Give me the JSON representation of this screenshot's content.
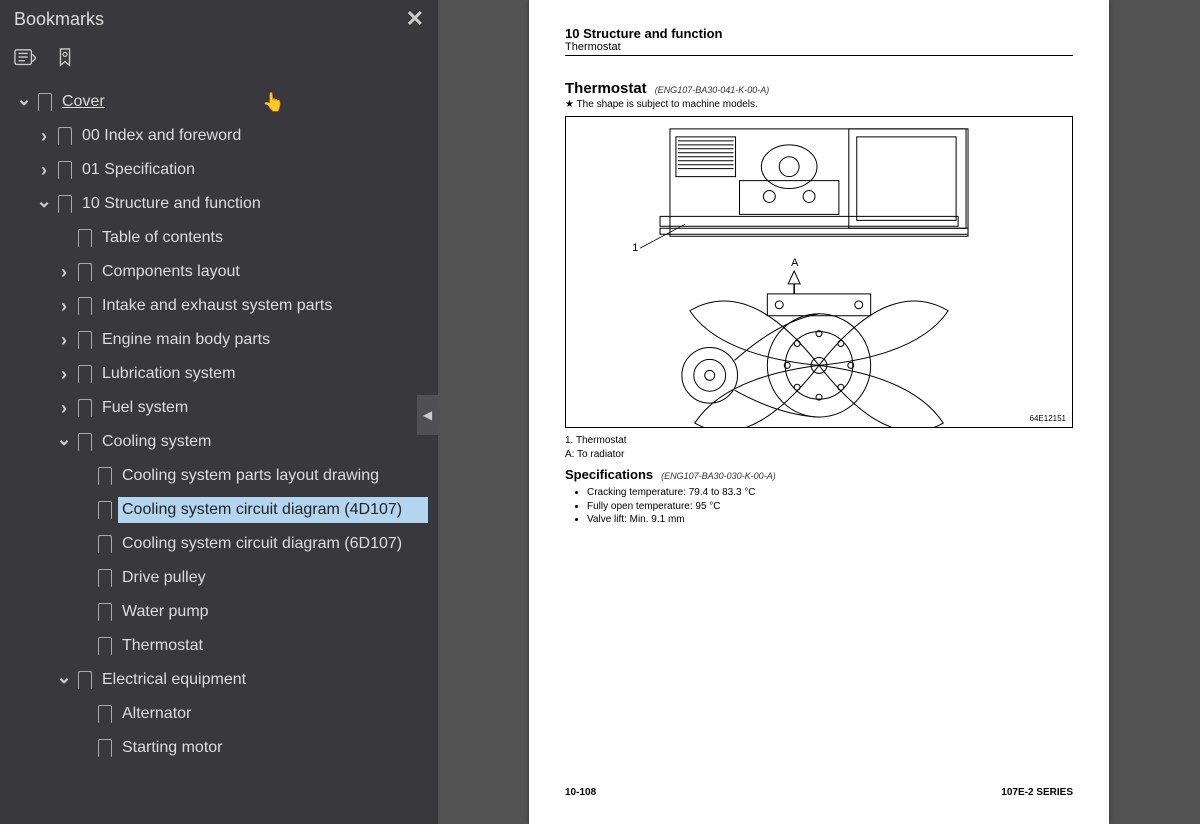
{
  "sidebar": {
    "title": "Bookmarks",
    "tree": [
      {
        "id": "cover",
        "label": "Cover",
        "depth": 0,
        "arrow": "down",
        "root": true
      },
      {
        "id": "idx",
        "label": "00 Index and foreword",
        "depth": 1,
        "arrow": "right"
      },
      {
        "id": "spec",
        "label": "01 Specification",
        "depth": 1,
        "arrow": "right"
      },
      {
        "id": "sf",
        "label": "10 Structure and function",
        "depth": 1,
        "arrow": "down"
      },
      {
        "id": "toc",
        "label": "Table of contents",
        "depth": 2,
        "arrow": "none"
      },
      {
        "id": "comp",
        "label": "Components layout",
        "depth": 2,
        "arrow": "right"
      },
      {
        "id": "intake",
        "label": "Intake and exhaust system parts",
        "depth": 2,
        "arrow": "right"
      },
      {
        "id": "engine",
        "label": "Engine main body parts",
        "depth": 2,
        "arrow": "right"
      },
      {
        "id": "lub",
        "label": "Lubrication system",
        "depth": 2,
        "arrow": "right"
      },
      {
        "id": "fuel",
        "label": "Fuel system",
        "depth": 2,
        "arrow": "right"
      },
      {
        "id": "cool",
        "label": "Cooling system",
        "depth": 2,
        "arrow": "down"
      },
      {
        "id": "coolparts",
        "label": "Cooling system parts layout drawing",
        "depth": 3,
        "arrow": "none"
      },
      {
        "id": "cool4d",
        "label": "Cooling system circuit diagram (4D107)",
        "depth": 3,
        "arrow": "none",
        "selected": true
      },
      {
        "id": "cool6d",
        "label": "Cooling system circuit diagram (6D107)",
        "depth": 3,
        "arrow": "none"
      },
      {
        "id": "drive",
        "label": "Drive pulley",
        "depth": 3,
        "arrow": "none"
      },
      {
        "id": "water",
        "label": "Water pump",
        "depth": 3,
        "arrow": "none"
      },
      {
        "id": "thermo",
        "label": "Thermostat",
        "depth": 3,
        "arrow": "none"
      },
      {
        "id": "elec",
        "label": "Electrical equipment",
        "depth": 2,
        "arrow": "down"
      },
      {
        "id": "alt",
        "label": "Alternator",
        "depth": 3,
        "arrow": "none"
      },
      {
        "id": "start",
        "label": "Starting motor",
        "depth": 3,
        "arrow": "none"
      }
    ]
  },
  "page": {
    "header_section": "10 Structure and function",
    "header_sub": "Thermostat",
    "section_title": "Thermostat",
    "section_code": "(ENG107-BA30-041-K-00-A)",
    "star_note": "★  The shape is subject to machine models.",
    "diagram_label_1": "1",
    "diagram_label_A": "A",
    "diagram_id": "64E12151",
    "legend_1": "1. Thermostat",
    "legend_A": "A: To radiator",
    "specs_title": "Specifications",
    "specs_code": "(ENG107-BA30-030-K-00-A)",
    "specs": [
      "Cracking temperature: 79.4 to 83.3 °C",
      "Fully open temperature: 95 °C",
      "Valve lift: Min. 9.1 mm"
    ],
    "footer_left": "10-108",
    "footer_right": "107E-2 SERIES"
  }
}
